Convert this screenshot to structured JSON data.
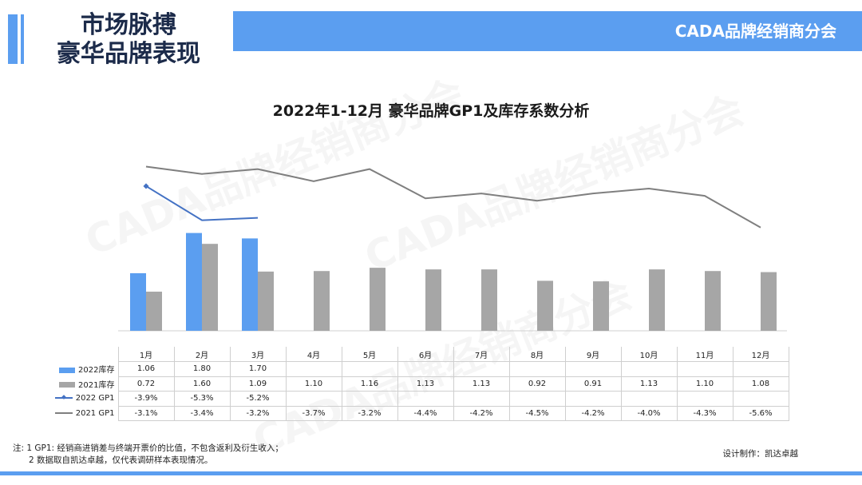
{
  "header": {
    "title_line1": "市场脉搏",
    "title_line2": "豪华品牌表现",
    "brand": "CADA品牌经销商分会"
  },
  "watermark_text": "CADA品牌经销商分会",
  "colors": {
    "accent": "#5b9ef0",
    "inventory_2022": "#5b9ef0",
    "inventory_2021": "#a6a6a6",
    "gp1_2022": "#4472c4",
    "gp1_2021": "#7f7f7f"
  },
  "chart_data": {
    "type": "bar",
    "title": "2022年1-12月 豪华品牌GP1及库存系数分析",
    "categories": [
      "1月",
      "2月",
      "3月",
      "4月",
      "5月",
      "6月",
      "7月",
      "8月",
      "9月",
      "10月",
      "11月",
      "12月"
    ],
    "series": [
      {
        "name": "2022库存",
        "type": "bar",
        "values": [
          1.06,
          1.8,
          1.7,
          null,
          null,
          null,
          null,
          null,
          null,
          null,
          null,
          null
        ],
        "labels": [
          "1.06",
          "1.80",
          "1.70",
          "",
          "",
          "",
          "",
          "",
          "",
          "",
          "",
          ""
        ]
      },
      {
        "name": "2021库存",
        "type": "bar",
        "values": [
          0.72,
          1.6,
          1.09,
          1.1,
          1.16,
          1.13,
          1.13,
          0.92,
          0.91,
          1.13,
          1.1,
          1.08
        ],
        "labels": [
          "0.72",
          "1.60",
          "1.09",
          "1.10",
          "1.16",
          "1.13",
          "1.13",
          "0.92",
          "0.91",
          "1.13",
          "1.10",
          "1.08"
        ]
      },
      {
        "name": "2022 GP1",
        "type": "line",
        "values": [
          -3.9,
          -5.3,
          -5.2,
          null,
          null,
          null,
          null,
          null,
          null,
          null,
          null,
          null
        ],
        "labels": [
          "-3.9%",
          "-5.3%",
          "-5.2%",
          "",
          "",
          "",
          "",
          "",
          "",
          "",
          "",
          ""
        ]
      },
      {
        "name": "2021 GP1",
        "type": "line",
        "values": [
          -3.1,
          -3.4,
          -3.2,
          -3.7,
          -3.2,
          -4.4,
          -4.2,
          -4.5,
          -4.2,
          -4.0,
          -4.3,
          -5.6
        ],
        "labels": [
          "-3.1%",
          "-3.4%",
          "-3.2%",
          "-3.7%",
          "-3.2%",
          "-4.4%",
          "-4.2%",
          "-4.5%",
          "-4.2%",
          "-4.0%",
          "-4.3%",
          "-5.6%"
        ]
      }
    ],
    "legend": "data table"
  },
  "notes": {
    "line1": "注: 1 GP1: 经销商进销差与终端开票价的比值，不包含返利及衍生收入；",
    "line2": "2 数据取自凯达卓越，仅代表调研样本表现情况。"
  },
  "credit": "设计制作：凯达卓越"
}
